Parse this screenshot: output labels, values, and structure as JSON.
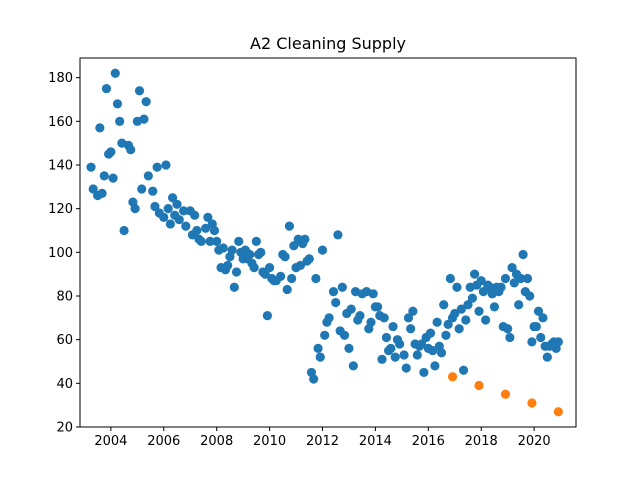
{
  "chart_data": {
    "type": "scatter",
    "title": "A2 Cleaning Supply",
    "xlabel": "",
    "ylabel": "",
    "xlim": [
      "2002-11-01",
      "2021-08-01"
    ],
    "ylim": [
      20,
      189
    ],
    "x_ticks": [
      "2004",
      "2006",
      "2008",
      "2010",
      "2012",
      "2014",
      "2016",
      "2018",
      "2020"
    ],
    "y_ticks": [
      20,
      40,
      60,
      80,
      100,
      120,
      140,
      160,
      180
    ],
    "grid": false,
    "legend": "none",
    "series": [
      {
        "color": "#1f77b4",
        "points": [
          [
            "2003-04-01",
            139
          ],
          [
            "2003-05-01",
            129
          ],
          [
            "2003-07-01",
            126
          ],
          [
            "2003-08-01",
            157
          ],
          [
            "2003-09-01",
            127
          ],
          [
            "2003-10-01",
            135
          ],
          [
            "2003-11-01",
            175
          ],
          [
            "2003-12-01",
            145
          ],
          [
            "2004-01-01",
            146
          ],
          [
            "2004-02-01",
            134
          ],
          [
            "2004-03-01",
            182
          ],
          [
            "2004-04-01",
            168
          ],
          [
            "2004-05-01",
            160
          ],
          [
            "2004-06-01",
            150
          ],
          [
            "2004-07-01",
            110
          ],
          [
            "2004-09-01",
            149
          ],
          [
            "2004-10-01",
            147
          ],
          [
            "2004-11-01",
            123
          ],
          [
            "2004-12-01",
            120
          ],
          [
            "2005-01-01",
            160
          ],
          [
            "2005-02-01",
            174
          ],
          [
            "2005-03-01",
            129
          ],
          [
            "2005-04-01",
            161
          ],
          [
            "2005-05-01",
            169
          ],
          [
            "2005-06-01",
            135
          ],
          [
            "2005-08-01",
            128
          ],
          [
            "2005-09-01",
            121
          ],
          [
            "2005-10-01",
            139
          ],
          [
            "2005-11-01",
            118
          ],
          [
            "2006-01-01",
            116
          ],
          [
            "2006-02-01",
            140
          ],
          [
            "2006-03-01",
            120
          ],
          [
            "2006-04-01",
            113
          ],
          [
            "2006-05-01",
            125
          ],
          [
            "2006-06-01",
            117
          ],
          [
            "2006-07-01",
            122
          ],
          [
            "2006-08-01",
            115
          ],
          [
            "2006-10-01",
            119
          ],
          [
            "2006-11-01",
            112
          ],
          [
            "2007-01-01",
            119
          ],
          [
            "2007-02-01",
            108
          ],
          [
            "2007-03-01",
            117
          ],
          [
            "2007-04-01",
            110
          ],
          [
            "2007-05-01",
            106
          ],
          [
            "2007-06-01",
            105
          ],
          [
            "2007-08-01",
            111
          ],
          [
            "2007-09-01",
            116
          ],
          [
            "2007-10-01",
            105
          ],
          [
            "2007-11-01",
            113
          ],
          [
            "2007-12-01",
            110
          ],
          [
            "2008-01-01",
            105
          ],
          [
            "2008-02-01",
            101
          ],
          [
            "2008-03-01",
            93
          ],
          [
            "2008-04-01",
            102
          ],
          [
            "2008-05-01",
            92
          ],
          [
            "2008-06-01",
            94
          ],
          [
            "2008-07-01",
            98
          ],
          [
            "2008-08-01",
            101
          ],
          [
            "2008-09-01",
            84
          ],
          [
            "2008-10-01",
            91
          ],
          [
            "2008-11-01",
            105
          ],
          [
            "2008-12-01",
            100
          ],
          [
            "2009-01-01",
            97
          ],
          [
            "2009-02-01",
            101
          ],
          [
            "2009-03-01",
            97
          ],
          [
            "2009-04-01",
            99
          ],
          [
            "2009-05-01",
            95
          ],
          [
            "2009-06-01",
            93
          ],
          [
            "2009-07-01",
            105
          ],
          [
            "2009-08-01",
            99
          ],
          [
            "2009-09-01",
            100
          ],
          [
            "2009-10-01",
            91
          ],
          [
            "2009-11-01",
            90
          ],
          [
            "2009-12-01",
            71
          ],
          [
            "2010-01-01",
            93
          ],
          [
            "2010-02-01",
            88
          ],
          [
            "2010-03-01",
            87
          ],
          [
            "2010-04-01",
            87
          ],
          [
            "2010-06-01",
            89
          ],
          [
            "2010-07-01",
            99
          ],
          [
            "2010-08-01",
            98
          ],
          [
            "2010-09-01",
            83
          ],
          [
            "2010-10-01",
            112
          ],
          [
            "2010-11-01",
            88
          ],
          [
            "2010-12-01",
            103
          ],
          [
            "2011-01-01",
            93
          ],
          [
            "2011-02-01",
            106
          ],
          [
            "2011-03-01",
            94
          ],
          [
            "2011-04-01",
            104
          ],
          [
            "2011-05-01",
            106
          ],
          [
            "2011-06-01",
            96
          ],
          [
            "2011-07-01",
            97
          ],
          [
            "2011-08-01",
            45
          ],
          [
            "2011-09-01",
            42
          ],
          [
            "2011-10-01",
            88
          ],
          [
            "2011-11-01",
            56
          ],
          [
            "2011-12-01",
            52
          ],
          [
            "2012-01-01",
            101
          ],
          [
            "2012-02-01",
            62
          ],
          [
            "2012-03-01",
            68
          ],
          [
            "2012-04-01",
            70
          ],
          [
            "2012-06-01",
            82
          ],
          [
            "2012-07-01",
            77
          ],
          [
            "2012-08-01",
            108
          ],
          [
            "2012-09-01",
            64
          ],
          [
            "2012-10-01",
            84
          ],
          [
            "2012-11-01",
            62
          ],
          [
            "2012-12-01",
            72
          ],
          [
            "2013-01-01",
            56
          ],
          [
            "2013-02-01",
            74
          ],
          [
            "2013-03-01",
            48
          ],
          [
            "2013-04-01",
            82
          ],
          [
            "2013-05-01",
            69
          ],
          [
            "2013-06-01",
            71
          ],
          [
            "2013-07-01",
            81
          ],
          [
            "2013-09-01",
            82
          ],
          [
            "2013-10-01",
            65
          ],
          [
            "2013-11-01",
            68
          ],
          [
            "2013-12-01",
            81
          ],
          [
            "2014-01-01",
            75
          ],
          [
            "2014-02-01",
            75
          ],
          [
            "2014-03-01",
            71
          ],
          [
            "2014-04-01",
            51
          ],
          [
            "2014-05-01",
            70
          ],
          [
            "2014-06-01",
            61
          ],
          [
            "2014-07-01",
            55
          ],
          [
            "2014-08-01",
            56
          ],
          [
            "2014-09-01",
            66
          ],
          [
            "2014-10-01",
            52
          ],
          [
            "2014-11-01",
            60
          ],
          [
            "2014-12-01",
            58
          ],
          [
            "2015-02-01",
            53
          ],
          [
            "2015-03-01",
            47
          ],
          [
            "2015-04-01",
            70
          ],
          [
            "2015-05-01",
            65
          ],
          [
            "2015-06-01",
            73
          ],
          [
            "2015-07-01",
            58
          ],
          [
            "2015-08-01",
            53
          ],
          [
            "2015-09-01",
            57
          ],
          [
            "2015-10-01",
            58
          ],
          [
            "2015-11-01",
            45
          ],
          [
            "2015-12-01",
            61
          ],
          [
            "2016-01-01",
            56
          ],
          [
            "2016-02-01",
            63
          ],
          [
            "2016-03-01",
            55
          ],
          [
            "2016-04-01",
            48
          ],
          [
            "2016-05-01",
            68
          ],
          [
            "2016-06-01",
            57
          ],
          [
            "2016-07-01",
            54
          ],
          [
            "2016-08-01",
            76
          ],
          [
            "2016-09-01",
            62
          ],
          [
            "2016-10-01",
            67
          ],
          [
            "2016-11-01",
            88
          ],
          [
            "2016-12-01",
            70
          ],
          [
            "2017-01-01",
            72
          ],
          [
            "2017-02-01",
            84
          ],
          [
            "2017-03-01",
            65
          ],
          [
            "2017-04-01",
            74
          ],
          [
            "2017-05-01",
            46
          ],
          [
            "2017-06-01",
            69
          ],
          [
            "2017-07-01",
            76
          ],
          [
            "2017-08-01",
            84
          ],
          [
            "2017-09-01",
            79
          ],
          [
            "2017-10-01",
            90
          ],
          [
            "2017-11-01",
            85
          ],
          [
            "2017-12-01",
            73
          ],
          [
            "2018-01-01",
            87
          ],
          [
            "2018-02-01",
            82
          ],
          [
            "2018-03-01",
            69
          ],
          [
            "2018-04-01",
            85
          ],
          [
            "2018-05-01",
            84
          ],
          [
            "2018-06-01",
            81
          ],
          [
            "2018-07-01",
            75
          ],
          [
            "2018-08-01",
            84
          ],
          [
            "2018-09-01",
            82
          ],
          [
            "2018-10-01",
            84
          ],
          [
            "2018-11-01",
            66
          ],
          [
            "2018-12-01",
            88
          ],
          [
            "2019-01-01",
            65
          ],
          [
            "2019-02-01",
            61
          ],
          [
            "2019-03-01",
            93
          ],
          [
            "2019-04-01",
            86
          ],
          [
            "2019-05-01",
            90
          ],
          [
            "2019-06-01",
            76
          ],
          [
            "2019-07-01",
            88
          ],
          [
            "2019-08-01",
            99
          ],
          [
            "2019-09-01",
            82
          ],
          [
            "2019-10-01",
            88
          ],
          [
            "2019-11-01",
            80
          ],
          [
            "2019-12-01",
            59
          ],
          [
            "2020-01-01",
            66
          ],
          [
            "2020-02-01",
            66
          ],
          [
            "2020-03-01",
            73
          ],
          [
            "2020-04-01",
            61
          ],
          [
            "2020-05-01",
            70
          ],
          [
            "2020-06-01",
            57
          ],
          [
            "2020-07-01",
            52
          ],
          [
            "2020-08-01",
            57
          ],
          [
            "2020-09-01",
            58
          ],
          [
            "2020-10-01",
            59
          ],
          [
            "2020-11-01",
            56
          ],
          [
            "2020-12-01",
            59
          ]
        ]
      },
      {
        "color": "#ff7f0e",
        "points": [
          [
            "2016-12-01",
            43
          ],
          [
            "2017-12-01",
            39
          ],
          [
            "2018-12-01",
            35
          ],
          [
            "2019-12-01",
            31
          ],
          [
            "2020-12-01",
            27
          ]
        ]
      }
    ]
  }
}
